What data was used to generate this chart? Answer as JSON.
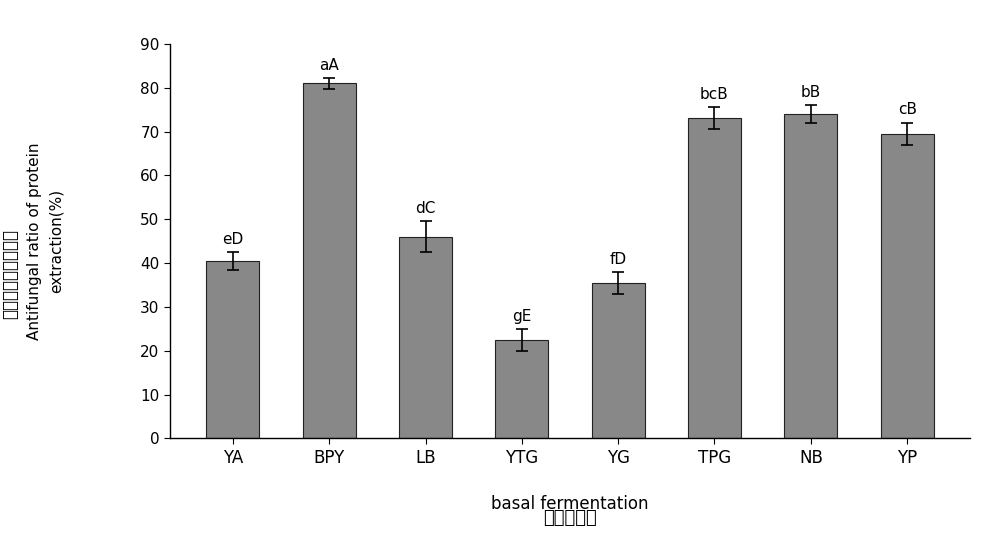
{
  "categories": [
    "YA",
    "BPY",
    "LB",
    "YTG",
    "YG",
    "TPG",
    "NB",
    "YP"
  ],
  "values": [
    40.5,
    81.0,
    46.0,
    22.5,
    35.5,
    73.0,
    74.0,
    69.5
  ],
  "errors": [
    2.0,
    1.2,
    3.5,
    2.5,
    2.5,
    2.5,
    2.0,
    2.5
  ],
  "labels": [
    "eD",
    "aA",
    "dC",
    "gE",
    "fD",
    "bcB",
    "bB",
    "cB"
  ],
  "bar_color": "#888888",
  "bar_edge_color": "#222222",
  "ylabel_cn": "蛋白类提取物抑菌率",
  "ylabel_en": "Antifungal ratio of protein\nextraction(%)",
  "xlabel_cn": "基础发酵液",
  "xlabel_en": "basal fermentation",
  "ylim": [
    0,
    90
  ],
  "yticks": [
    0,
    10,
    20,
    30,
    40,
    50,
    60,
    70,
    80,
    90
  ],
  "background_color": "#ffffff",
  "bar_width": 0.55
}
